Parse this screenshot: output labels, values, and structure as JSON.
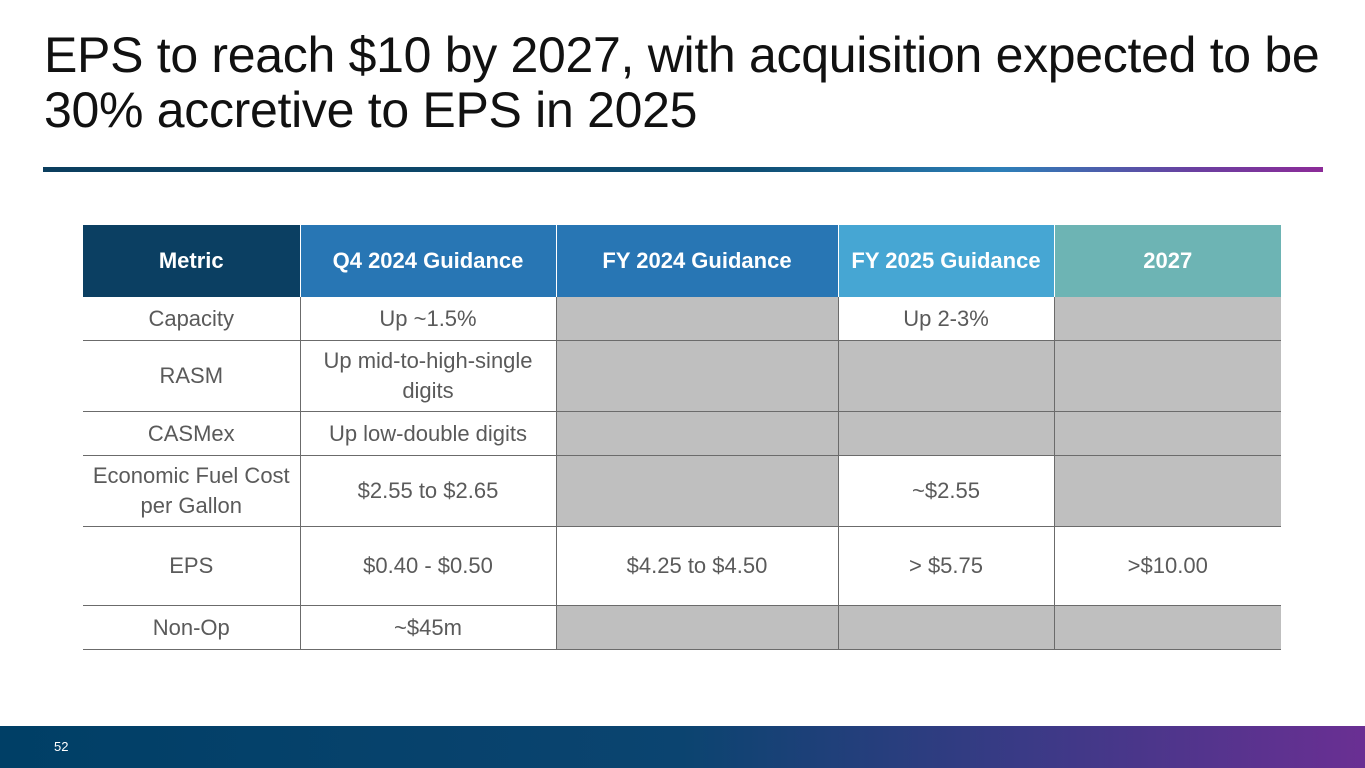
{
  "slide": {
    "title": "EPS to reach $10 by 2027, with acquisition expected to be 30% accretive to EPS in 2025",
    "page_number": "52"
  },
  "table": {
    "headers": {
      "metric": "Metric",
      "q4_2024": "Q4 2024 Guidance",
      "fy_2024": "FY 2024 Guidance",
      "fy_2025": "FY 2025 Guidance",
      "y2027": "2027"
    },
    "rows": [
      {
        "metric": "Capacity",
        "q4_2024": "Up ~1.5%",
        "fy_2024": "",
        "fy_2025": "Up 2-3%",
        "y2027": ""
      },
      {
        "metric": "RASM",
        "q4_2024": "Up mid-to-high-single digits",
        "fy_2024": "",
        "fy_2025": "",
        "y2027": ""
      },
      {
        "metric": "CASMex",
        "q4_2024": "Up low-double digits",
        "fy_2024": "",
        "fy_2025": "",
        "y2027": ""
      },
      {
        "metric": "Economic Fuel Cost per Gallon",
        "q4_2024": "$2.55 to $2.65",
        "fy_2024": "",
        "fy_2025": "~$2.55",
        "y2027": ""
      },
      {
        "metric": "EPS",
        "q4_2024": "$0.40 - $0.50",
        "fy_2024": "$4.25 to $4.50",
        "fy_2025": "> $5.75",
        "y2027": ">$10.00"
      },
      {
        "metric": "Non-Op",
        "q4_2024": "~$45m",
        "fy_2024": "",
        "fy_2025": "",
        "y2027": ""
      }
    ]
  },
  "colors": {
    "header_metric": "#0b3f62",
    "header_q4": "#2876b4",
    "header_fy24": "#2876b4",
    "header_fy25": "#46a6d3",
    "header_2027": "#6db4b4",
    "blank_cell": "#bfbfbf",
    "footer_start": "#003f66",
    "footer_end": "#6a2f93"
  }
}
